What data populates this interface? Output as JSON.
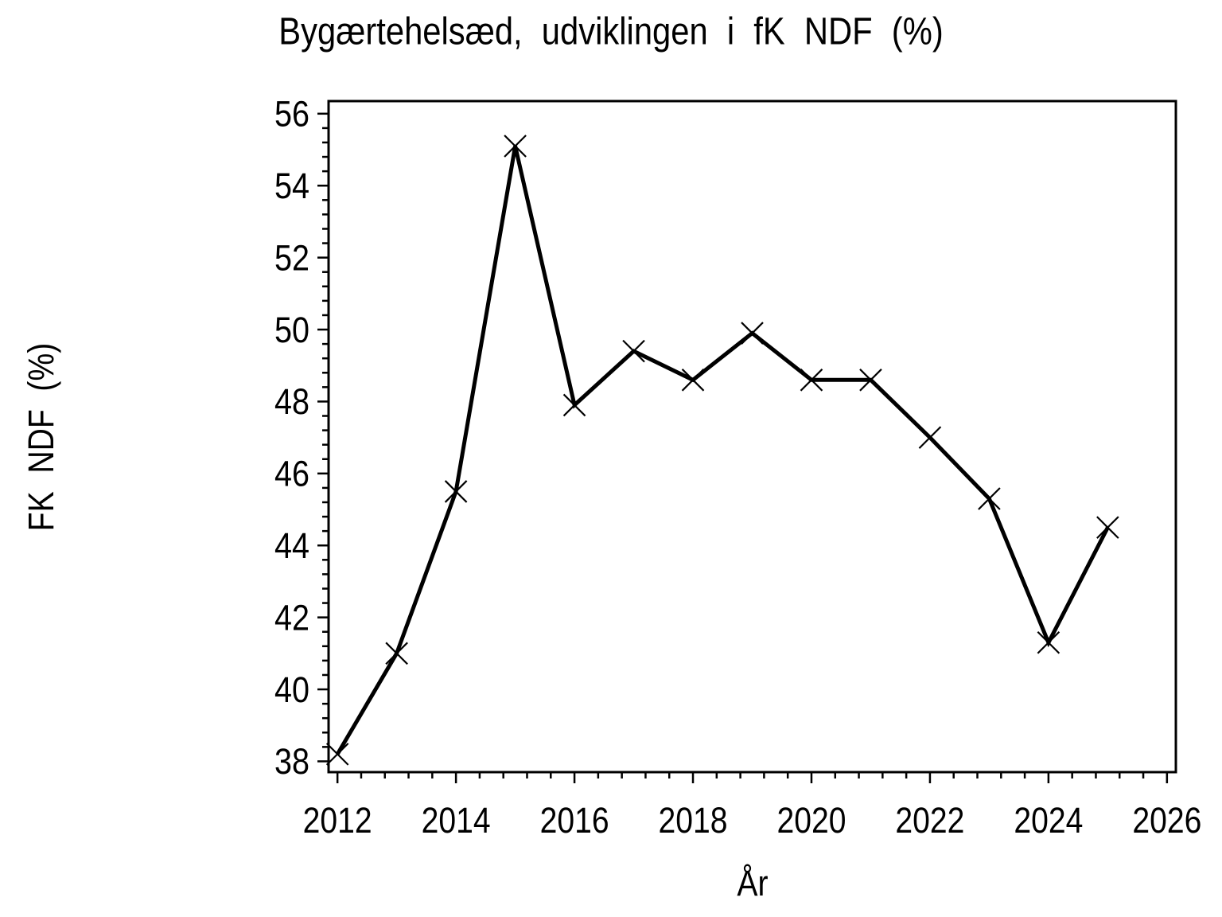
{
  "window": {
    "background": "#ffffff"
  },
  "chart_data": {
    "type": "line",
    "title": "Bygærtehelsæd, udviklingen i fK NDF (%)",
    "xlabel": "År",
    "ylabel": "FK NDF (%)",
    "x": [
      2012,
      2013,
      2014,
      2015,
      2016,
      2017,
      2018,
      2019,
      2020,
      2021,
      2022,
      2023,
      2024,
      2025
    ],
    "values": [
      38.2,
      41.0,
      45.5,
      55.1,
      47.9,
      49.4,
      48.6,
      49.9,
      48.6,
      48.6,
      47.0,
      45.3,
      41.3,
      44.5
    ],
    "xticks": [
      2012,
      2014,
      2016,
      2018,
      2020,
      2022,
      2024,
      2026
    ],
    "yticks": [
      38,
      40,
      42,
      44,
      46,
      48,
      50,
      52,
      54,
      56
    ],
    "minor_tick_step_x": 0.4,
    "minor_tick_step_y": 0.4,
    "xlim": [
      2011.85,
      2026.15
    ],
    "ylim": [
      37.7,
      56.35
    ],
    "grid": false,
    "legend": false,
    "marker": "x",
    "line_color": "#000000",
    "text_color": "#000000"
  }
}
